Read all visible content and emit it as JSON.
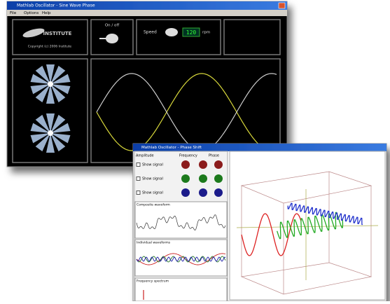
{
  "windows": [
    {
      "title": "Mathlab Oscillator - Sine Wave Phase",
      "menu": [
        "File",
        "Options",
        "Help"
      ],
      "logo": "INSTITUTE",
      "copyright": "Copyright (c) 2006 Institute",
      "on_off": "On / off",
      "speed": "Speed",
      "speed_value": "120",
      "speed_unit": "rpm"
    },
    {
      "title": "Mathlab Oscillator - Phase Shift",
      "headers": [
        "Amplitude",
        "Frequency",
        "Phase"
      ],
      "rows": [
        "Show signal",
        "Show signal",
        "Show signal"
      ],
      "panels": [
        "Composite waveform",
        "Individual waveforms",
        "Frequency spectrum"
      ]
    }
  ]
}
